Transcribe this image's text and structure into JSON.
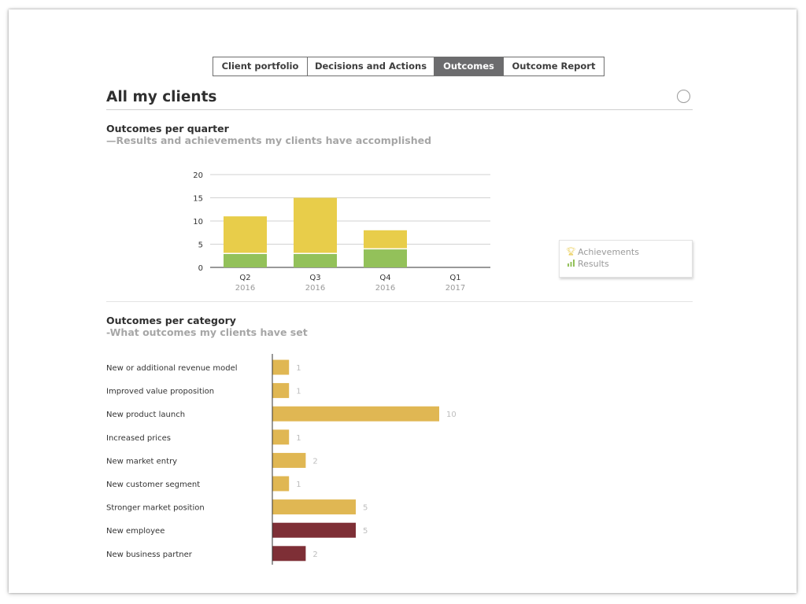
{
  "tabs": [
    {
      "label": "Client portfolio",
      "active": false
    },
    {
      "label": "Decisions and Actions",
      "active": false
    },
    {
      "label": "Outcomes",
      "active": true
    },
    {
      "label": "Outcome Report",
      "active": false
    }
  ],
  "page": {
    "title": "All my clients"
  },
  "quarter_section": {
    "title": "Outcomes per quarter",
    "subtitle": "—Results and achievements my clients have accomplished"
  },
  "category_section": {
    "title": "Outcomes per category",
    "subtitle": "-What outcomes my clients have set"
  },
  "legend": {
    "items": [
      {
        "label": "Achievements",
        "icon": "trophy-icon",
        "color": "#e8c94a"
      },
      {
        "label": "Results",
        "icon": "bar-chart-icon",
        "color": "#93c15a"
      }
    ]
  },
  "chart_data": [
    {
      "type": "bar",
      "stacked": true,
      "categories": [
        "Q2",
        "Q3",
        "Q4",
        "Q1"
      ],
      "category_years": [
        "2016",
        "2016",
        "2016",
        "2017"
      ],
      "series": [
        {
          "name": "Results",
          "values": [
            3,
            3,
            4,
            0
          ],
          "color": "#93c15a"
        },
        {
          "name": "Achievements",
          "values": [
            8,
            12,
            4,
            0
          ],
          "color": "#e8cd4a"
        }
      ],
      "ylim": [
        0,
        20
      ],
      "yticks": [
        0,
        5,
        10,
        15,
        20
      ],
      "grid": true,
      "legend": "right"
    },
    {
      "type": "bar",
      "orientation": "horizontal",
      "categories": [
        "New or additional revenue model",
        "Improved value proposition",
        "New product launch",
        "Increased prices",
        "New market entry",
        "New customer segment",
        "Stronger market position",
        "New employee",
        "New business partner"
      ],
      "values": [
        1,
        1,
        10,
        1,
        2,
        1,
        5,
        5,
        2
      ],
      "colors": [
        "#e0b753",
        "#e0b753",
        "#e0b753",
        "#e0b753",
        "#e0b753",
        "#e0b753",
        "#e0b753",
        "#7e2f36",
        "#7e2f36"
      ],
      "data_labels": true
    }
  ]
}
